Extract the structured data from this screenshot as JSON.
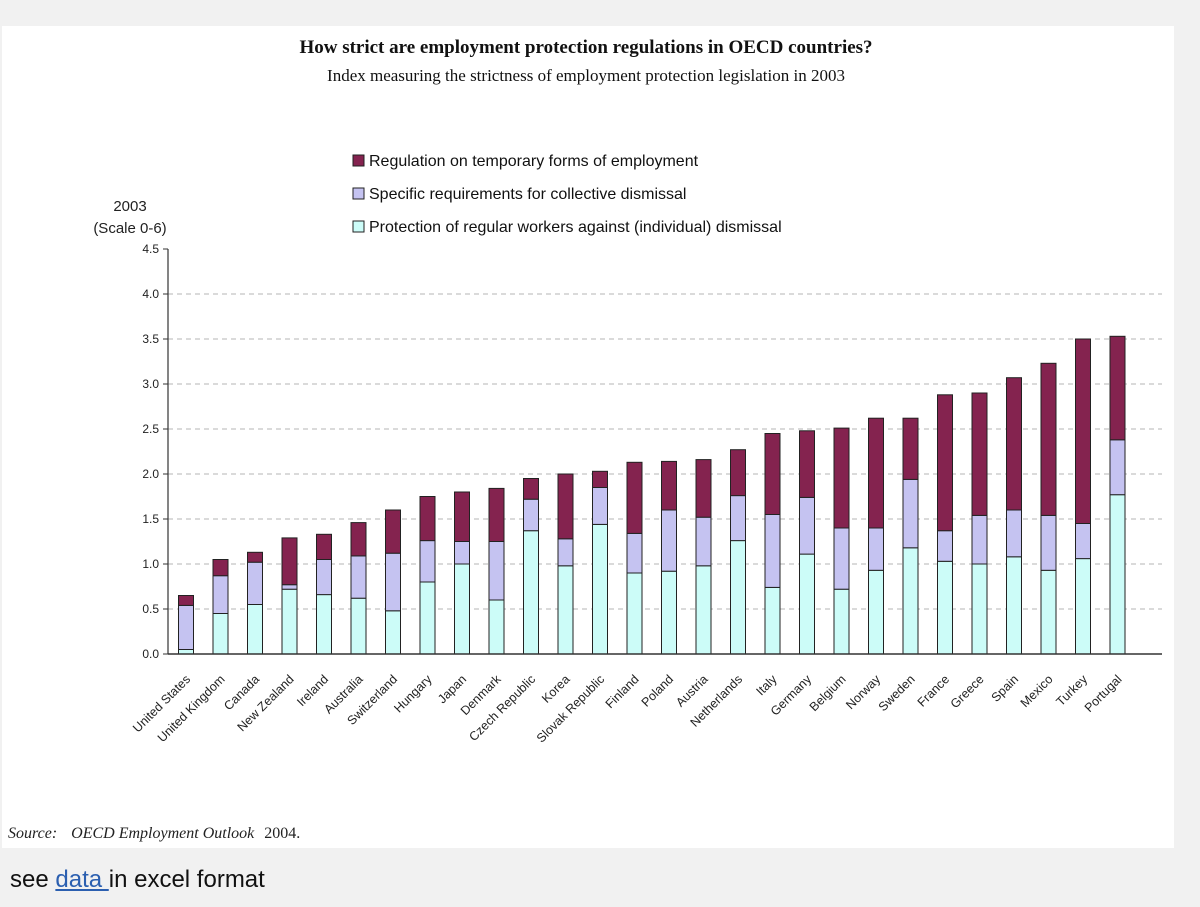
{
  "footer": {
    "prefix": "see",
    "link_label": "data ",
    "suffix": "in excel format"
  },
  "chart_data": {
    "type": "bar",
    "stacked": true,
    "title": "How strict are employment protection regulations in OECD countries?",
    "subtitle": "Index measuring the strictness of employment protection legislation in 2003",
    "ylabel_line1": "2003",
    "ylabel_line2": "(Scale 0-6)",
    "ylim": [
      0,
      4.5
    ],
    "yticks": [
      "0.0",
      "0.5",
      "1.0",
      "1.5",
      "2.0",
      "2.5",
      "3.0",
      "3.5",
      "4.0",
      "4.5"
    ],
    "grid": true,
    "legend_position": "top",
    "source_label": "Source:",
    "source_title": "OECD Employment Outlook",
    "source_year": "2004.",
    "categories": [
      "United States",
      "United Kingdom",
      "Canada",
      "New Zealand",
      "Ireland",
      "Australia",
      "Switzerland",
      "Hungary",
      "Japan",
      "Denmark",
      "Czech Republic",
      "Korea",
      "Slovak Republic",
      "Finland",
      "Poland",
      "Austria",
      "Netherlands",
      "Italy",
      "Germany",
      "Belgium",
      "Norway",
      "Sweden",
      "France",
      "Greece",
      "Spain",
      "Mexico",
      "Turkey",
      "Portugal"
    ],
    "series": [
      {
        "name": "Protection of regular workers against (individual) dismissal",
        "color": "#ccfcf8",
        "values": [
          0.05,
          0.45,
          0.55,
          0.72,
          0.66,
          0.62,
          0.48,
          0.8,
          1.0,
          0.6,
          1.37,
          0.98,
          1.44,
          0.9,
          0.92,
          0.98,
          1.26,
          0.74,
          1.11,
          0.72,
          0.93,
          1.18,
          1.03,
          1.0,
          1.08,
          0.93,
          1.06,
          1.77
        ]
      },
      {
        "name": "Specific requirements for collective dismissal",
        "color": "#c5c3f1",
        "values": [
          0.49,
          0.42,
          0.47,
          0.05,
          0.39,
          0.47,
          0.64,
          0.46,
          0.25,
          0.65,
          0.35,
          0.3,
          0.41,
          0.44,
          0.68,
          0.54,
          0.5,
          0.81,
          0.63,
          0.68,
          0.47,
          0.76,
          0.34,
          0.54,
          0.52,
          0.61,
          0.39,
          0.61
        ]
      },
      {
        "name": "Regulation on temporary forms of employment",
        "color": "#84234f",
        "values": [
          0.11,
          0.18,
          0.11,
          0.52,
          0.28,
          0.37,
          0.48,
          0.49,
          0.55,
          0.59,
          0.23,
          0.72,
          0.18,
          0.79,
          0.54,
          0.64,
          0.51,
          0.9,
          0.74,
          1.11,
          1.22,
          0.68,
          1.51,
          1.36,
          1.47,
          1.69,
          2.05,
          1.15
        ]
      }
    ]
  }
}
